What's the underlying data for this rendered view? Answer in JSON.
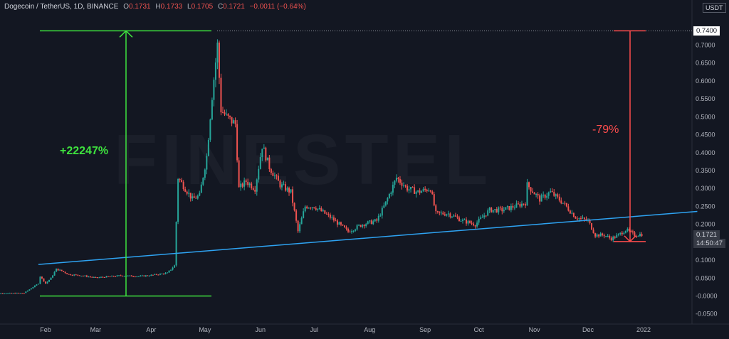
{
  "legend": {
    "ticker": "Dogecoin / TetherUS, 1D, BINANCE",
    "o_label": "O",
    "o_value": "0.1731",
    "h_label": "H",
    "h_value": "0.1733",
    "l_label": "L",
    "l_value": "0.1705",
    "c_label": "C",
    "c_value": "0.1721",
    "change": "−0.0011 (−0.64%)"
  },
  "unit_label": "USDT",
  "price_tags": {
    "high": "0.7400",
    "last": "0.1721",
    "countdown": "14:50:47"
  },
  "annotations": {
    "gain": "+22247%",
    "drop": "-79%"
  },
  "watermark": "FINESTEL",
  "colors": {
    "background": "#131722",
    "up": "#26a69a",
    "down": "#ef5350",
    "trendline": "#2ea3f2",
    "gain": "#3ee33e",
    "drop": "#ff4d4d"
  },
  "chart_data": {
    "type": "candlestick",
    "x_tick_labels": [
      "Feb",
      "Mar",
      "Apr",
      "May",
      "Jun",
      "Jul",
      "Aug",
      "Sep",
      "Oct",
      "Nov",
      "Dec",
      "2022"
    ],
    "y_tick_labels": [
      "0.7000",
      "0.6500",
      "0.6000",
      "0.5500",
      "0.5000",
      "0.4500",
      "0.4000",
      "0.3500",
      "0.3000",
      "0.2500",
      "0.2000",
      "0.1500",
      "0.1000",
      "0.0500",
      "-0.0000",
      "-0.0500"
    ],
    "y_ticks": [
      0.7,
      0.65,
      0.6,
      0.55,
      0.5,
      0.45,
      0.4,
      0.35,
      0.3,
      0.25,
      0.2,
      0.15,
      0.1,
      0.05,
      0.0,
      -0.05
    ],
    "y_range": [
      -0.06,
      0.76
    ],
    "series": [
      {
        "values": [
          [
            "2021-01-01",
            0.0075
          ],
          [
            "2021-01-20",
            0.0085
          ],
          [
            "2021-01-28",
            0.035
          ],
          [
            "2021-01-29",
            0.055
          ],
          [
            "2021-02-01",
            0.035
          ],
          [
            "2021-02-04",
            0.05
          ],
          [
            "2021-02-07",
            0.075
          ],
          [
            "2021-02-10",
            0.07
          ],
          [
            "2021-02-14",
            0.06
          ],
          [
            "2021-02-20",
            0.058
          ],
          [
            "2021-03-01",
            0.051
          ],
          [
            "2021-03-15",
            0.057
          ],
          [
            "2021-03-25",
            0.055
          ],
          [
            "2021-04-01",
            0.058
          ],
          [
            "2021-04-10",
            0.064
          ],
          [
            "2021-04-14",
            0.085
          ],
          [
            "2021-04-16",
            0.33
          ],
          [
            "2021-04-20",
            0.3
          ],
          [
            "2021-04-24",
            0.27
          ],
          [
            "2021-04-28",
            0.28
          ],
          [
            "2021-05-02",
            0.39
          ],
          [
            "2021-05-05",
            0.56
          ],
          [
            "2021-05-08",
            0.7
          ],
          [
            "2021-05-10",
            0.52
          ],
          [
            "2021-05-13",
            0.5
          ],
          [
            "2021-05-18",
            0.48
          ],
          [
            "2021-05-20",
            0.3
          ],
          [
            "2021-05-24",
            0.32
          ],
          [
            "2021-05-29",
            0.3
          ],
          [
            "2021-06-02",
            0.42
          ],
          [
            "2021-06-06",
            0.36
          ],
          [
            "2021-06-12",
            0.31
          ],
          [
            "2021-06-18",
            0.29
          ],
          [
            "2021-06-22",
            0.18
          ],
          [
            "2021-06-26",
            0.25
          ],
          [
            "2021-07-01",
            0.25
          ],
          [
            "2021-07-10",
            0.22
          ],
          [
            "2021-07-20",
            0.18
          ],
          [
            "2021-07-28",
            0.2
          ],
          [
            "2021-08-05",
            0.21
          ],
          [
            "2021-08-10",
            0.26
          ],
          [
            "2021-08-16",
            0.33
          ],
          [
            "2021-08-22",
            0.3
          ],
          [
            "2021-08-28",
            0.29
          ],
          [
            "2021-09-04",
            0.3
          ],
          [
            "2021-09-07",
            0.23
          ],
          [
            "2021-09-14",
            0.23
          ],
          [
            "2021-09-22",
            0.21
          ],
          [
            "2021-09-29",
            0.2
          ],
          [
            "2021-10-07",
            0.24
          ],
          [
            "2021-10-14",
            0.24
          ],
          [
            "2021-10-21",
            0.25
          ],
          [
            "2021-10-27",
            0.26
          ],
          [
            "2021-10-28",
            0.31
          ],
          [
            "2021-11-04",
            0.27
          ],
          [
            "2021-11-10",
            0.29
          ],
          [
            "2021-11-17",
            0.26
          ],
          [
            "2021-11-24",
            0.22
          ],
          [
            "2021-12-01",
            0.21
          ],
          [
            "2021-12-05",
            0.17
          ],
          [
            "2021-12-10",
            0.17
          ],
          [
            "2021-12-14",
            0.16
          ],
          [
            "2021-12-18",
            0.17
          ],
          [
            "2021-12-22",
            0.185
          ],
          [
            "2021-12-27",
            0.17
          ],
          [
            "2021-12-30",
            0.1721
          ]
        ]
      }
    ],
    "trendline": [
      [
        "2021-01-28",
        0.088
      ],
      [
        "2022-01-31",
        0.236
      ]
    ],
    "measure_gain": {
      "from": 0.0,
      "to": 0.74,
      "label": "+22247%"
    },
    "measure_drop": {
      "from": 0.74,
      "to": 0.152,
      "label": "-79%"
    }
  }
}
